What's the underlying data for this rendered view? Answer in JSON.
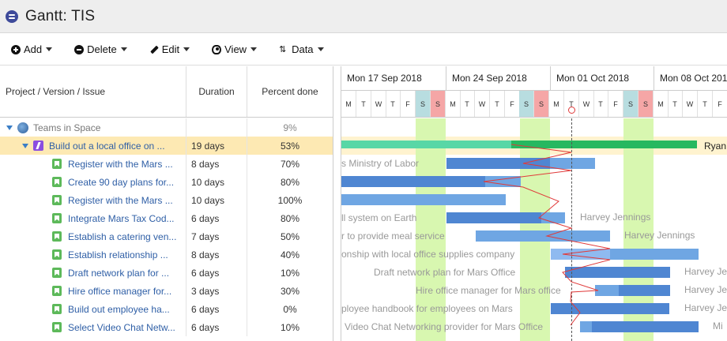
{
  "app": {
    "title": "Gantt:  TIS",
    "logo_icon": "app-logo-icon"
  },
  "toolbar": {
    "add": "Add",
    "delete": "Delete",
    "edit": "Edit",
    "view": "View",
    "data": "Data"
  },
  "columns": {
    "name": "Project / Version / Issue",
    "duration": "Duration",
    "percent": "Percent done"
  },
  "rows": [
    {
      "name": "Teams in Space",
      "duration": "",
      "percent": "9%",
      "type": "project"
    },
    {
      "name": "Build out a local office on ...",
      "duration": "19 days",
      "percent": "53%",
      "type": "epic"
    },
    {
      "name": "Register with the Mars ...",
      "duration": "8 days",
      "percent": "70%",
      "type": "story"
    },
    {
      "name": "Create 90 day plans for...",
      "duration": "10 days",
      "percent": "80%",
      "type": "story"
    },
    {
      "name": "Register with the Mars ...",
      "duration": "10 days",
      "percent": "100%",
      "type": "story"
    },
    {
      "name": "Integrate Mars Tax Cod...",
      "duration": "6 days",
      "percent": "80%",
      "type": "story"
    },
    {
      "name": "Establish a catering ven...",
      "duration": "7 days",
      "percent": "50%",
      "type": "story"
    },
    {
      "name": "Establish relationship ...",
      "duration": "8 days",
      "percent": "40%",
      "type": "story"
    },
    {
      "name": "Draft network plan for ...",
      "duration": "6 days",
      "percent": "10%",
      "type": "story"
    },
    {
      "name": "Hire office manager for...",
      "duration": "3 days",
      "percent": "30%",
      "type": "story"
    },
    {
      "name": "Build out employee ha...",
      "duration": "6 days",
      "percent": "0%",
      "type": "story"
    },
    {
      "name": "Select Video Chat Netw...",
      "duration": "6 days",
      "percent": "10%",
      "type": "story"
    }
  ],
  "timeline": {
    "weeks": [
      "Mon 17 Sep 2018",
      "Mon 24 Sep 2018",
      "Mon 01 Oct 2018",
      "Mon 08 Oct 2018"
    ],
    "day_letters": [
      "M",
      "T",
      "W",
      "T",
      "F",
      "S",
      "S"
    ],
    "ghost_labels": [
      "s Ministry of Labor",
      "ll system on Earth",
      "r to provide meal service",
      "onship with local office supplies company",
      "Draft network plan for Mars Office",
      "Hire office manager for Mars office",
      "ployee handbook for employees on Mars",
      "Video Chat Networking provider for Mars Office"
    ],
    "assignees": [
      "Ryan",
      "Harvey Jennings",
      "Harvey Jennings",
      "Harvey Je",
      "Harvey Je",
      "Harvey Je",
      "Mi"
    ]
  },
  "colors": {
    "accent": "#3e4a9a",
    "link": "#2f5fa6",
    "selected_row": "#fde9b3",
    "weekend": "#d8f7b0",
    "bar": "#6fa6e3",
    "epic_bar": "#58d7a6",
    "critical": "#e03a3a"
  }
}
